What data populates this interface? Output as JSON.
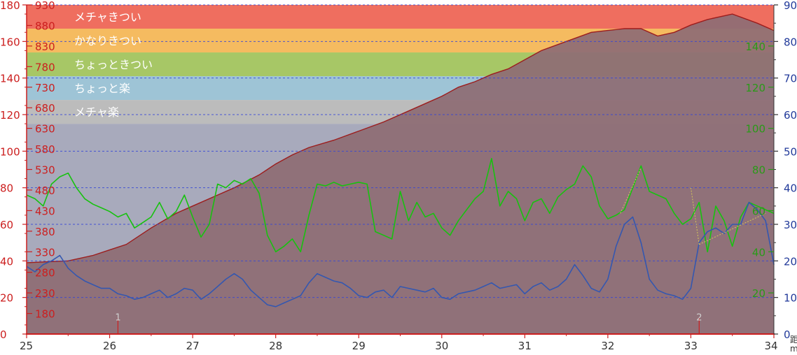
{
  "colors": {
    "background": "#ffffff",
    "plot_overlay": "#8b6b74",
    "zone_very_hard": "#ef6e5f",
    "zone_quite_hard": "#f5bb60",
    "zone_somewhat_hard": "#a7c766",
    "zone_slightly_easy": "#9ec4d6",
    "zone_very_easy": "#bcbcbc",
    "zone_below": "#a8aabc",
    "elevation_fill": "#8e6d74",
    "elevation_line": "#9c1d1d",
    "speed_line": "#17c20f",
    "blue_line": "#3457b0",
    "gap_line": "#d4c85a",
    "grid_line": "#3345d8",
    "left_axis": "#cc1f1f",
    "right_axis_1": "#223a9a",
    "right_axis_2": "#2a9a18",
    "lap_marker": "#cc1f1f"
  },
  "chart_data": {
    "type": "line",
    "x": {
      "ticks": [
        25,
        26,
        27,
        28,
        29,
        30,
        31,
        32,
        33,
        34
      ],
      "range": [
        25,
        34
      ]
    },
    "y_left": {
      "ticks": [
        0,
        20,
        40,
        60,
        80,
        100,
        120,
        140,
        160,
        180
      ],
      "range": [
        0,
        180
      ]
    },
    "y_elevation": {
      "ticks": [
        180,
        230,
        280,
        330,
        380,
        430,
        480,
        530,
        580,
        630,
        680,
        730,
        780,
        830,
        880,
        930
      ],
      "range": [
        130,
        930
      ]
    },
    "y_right_1": {
      "ticks": [
        0,
        10,
        20,
        30,
        40,
        50,
        60,
        70,
        80,
        90
      ],
      "range": [
        0,
        90
      ]
    },
    "y_right_2": {
      "ticks": [
        20,
        40,
        60,
        80,
        100,
        120,
        140
      ],
      "range": [
        0,
        160
      ]
    },
    "zones": [
      {
        "label": "メチャきつい",
        "from": 167,
        "to": 180
      },
      {
        "label": "かなりきつい",
        "from": 154,
        "to": 167
      },
      {
        "label": "ちょっときつい",
        "from": 141,
        "to": 154
      },
      {
        "label": "ちょっと楽",
        "from": 128,
        "to": 141
      },
      {
        "label": "メチャ楽",
        "from": 115,
        "to": 128
      }
    ],
    "lap_markers": [
      {
        "label": "1",
        "x": 26.1
      },
      {
        "label": "2",
        "x": 33.1
      }
    ],
    "axis_corner_label": "距\nm",
    "series": [
      {
        "id": "elevation",
        "x": [
          25.0,
          25.5,
          25.8,
          26.0,
          26.2,
          26.5,
          26.8,
          27.0,
          27.3,
          27.5,
          27.8,
          28.0,
          28.2,
          28.4,
          28.7,
          29.0,
          29.3,
          29.6,
          29.8,
          30.0,
          30.2,
          30.4,
          30.6,
          30.8,
          31.0,
          31.2,
          31.5,
          31.8,
          32.0,
          32.2,
          32.4,
          32.6,
          32.8,
          33.0,
          33.2,
          33.5,
          33.8,
          34.0
        ],
        "y": [
          39,
          40,
          43,
          46,
          49,
          58,
          66,
          70,
          76,
          80,
          87,
          93,
          98,
          102,
          106,
          111,
          116,
          122,
          126,
          130,
          135,
          138,
          142,
          145,
          150,
          155,
          160,
          165,
          166,
          167,
          167,
          163,
          165,
          169,
          172,
          175,
          170,
          166
        ]
      },
      {
        "id": "speed",
        "x": [
          25.0,
          25.1,
          25.2,
          25.3,
          25.4,
          25.5,
          25.6,
          25.7,
          25.8,
          25.9,
          26.0,
          26.1,
          26.2,
          26.3,
          26.4,
          26.5,
          26.6,
          26.7,
          26.8,
          26.9,
          27.0,
          27.1,
          27.2,
          27.3,
          27.4,
          27.5,
          27.6,
          27.7,
          27.8,
          27.9,
          28.0,
          28.1,
          28.2,
          28.3,
          28.4,
          28.5,
          28.6,
          28.7,
          28.8,
          28.9,
          29.0,
          29.1,
          29.2,
          29.3,
          29.4,
          29.5,
          29.6,
          29.7,
          29.8,
          29.9,
          30.0,
          30.1,
          30.2,
          30.3,
          30.4,
          30.5,
          30.6,
          30.7,
          30.8,
          30.9,
          31.0,
          31.1,
          31.2,
          31.3,
          31.4,
          31.5,
          31.6,
          31.7,
          31.8,
          31.9,
          32.0,
          32.1,
          32.2,
          32.3,
          32.4,
          32.5,
          32.6,
          32.7,
          32.8,
          32.9,
          33.0,
          33.1,
          33.2,
          33.3,
          33.4,
          33.5,
          33.6,
          33.7,
          33.8,
          33.9,
          34.0
        ],
        "y": [
          76,
          74,
          70,
          82,
          86,
          88,
          80,
          74,
          71,
          69,
          67,
          64,
          66,
          58,
          61,
          64,
          72,
          63,
          67,
          76,
          64,
          53,
          60,
          82,
          80,
          84,
          82,
          85,
          77,
          54,
          45,
          48,
          52,
          45,
          65,
          82,
          81,
          83,
          81,
          82,
          83,
          82,
          56,
          54,
          52,
          78,
          62,
          72,
          64,
          66,
          58,
          54,
          62,
          68,
          74,
          78,
          96,
          70,
          78,
          74,
          62,
          72,
          74,
          66,
          75,
          79,
          82,
          92,
          86,
          70,
          63,
          65,
          68,
          80,
          92,
          78,
          76,
          74,
          66,
          60,
          63,
          72,
          45,
          70,
          62,
          48,
          64,
          72,
          70,
          68,
          66
        ]
      },
      {
        "id": "blue",
        "x": [
          25.0,
          25.1,
          25.2,
          25.3,
          25.4,
          25.5,
          25.6,
          25.7,
          25.8,
          25.9,
          26.0,
          26.1,
          26.2,
          26.3,
          26.4,
          26.5,
          26.6,
          26.7,
          26.8,
          26.9,
          27.0,
          27.1,
          27.2,
          27.3,
          27.4,
          27.5,
          27.6,
          27.7,
          27.8,
          27.9,
          28.0,
          28.1,
          28.2,
          28.3,
          28.4,
          28.5,
          28.6,
          28.7,
          28.8,
          28.9,
          29.0,
          29.1,
          29.2,
          29.3,
          29.4,
          29.5,
          29.6,
          29.7,
          29.8,
          29.9,
          30.0,
          30.1,
          30.2,
          30.3,
          30.4,
          30.5,
          30.6,
          30.7,
          30.8,
          30.9,
          31.0,
          31.1,
          31.2,
          31.3,
          31.4,
          31.5,
          31.6,
          31.7,
          31.8,
          31.9,
          32.0,
          32.1,
          32.2,
          32.3,
          32.4,
          32.5,
          32.6,
          32.7,
          32.8,
          32.9,
          33.0,
          33.1,
          33.2,
          33.3,
          33.4,
          33.5,
          33.6,
          33.7,
          33.8,
          33.9,
          34.0
        ],
        "y": [
          37,
          34,
          38,
          40,
          43,
          36,
          32,
          29,
          27,
          25,
          25,
          22,
          21,
          19,
          20,
          22,
          24,
          20,
          22,
          25,
          24,
          19,
          22,
          26,
          30,
          33,
          30,
          24,
          20,
          16,
          15,
          17,
          19,
          21,
          28,
          33,
          31,
          29,
          28,
          25,
          21,
          20,
          23,
          24,
          20,
          26,
          25,
          24,
          23,
          25,
          20,
          19,
          22,
          23,
          24,
          26,
          28,
          25,
          26,
          27,
          22,
          26,
          28,
          24,
          26,
          30,
          38,
          32,
          25,
          23,
          30,
          48,
          60,
          64,
          50,
          30,
          24,
          22,
          21,
          19,
          25,
          50,
          56,
          58,
          55,
          60,
          60,
          72,
          68,
          62,
          38
        ]
      }
    ],
    "gap_segments": [
      {
        "x": [
          32.15,
          32.4
        ],
        "y": [
          66,
          91
        ]
      },
      {
        "x": [
          33.0,
          33.1
        ],
        "y": [
          80,
          49
        ]
      },
      {
        "x": [
          33.1,
          33.9
        ],
        "y": [
          49,
          66
        ]
      }
    ]
  }
}
